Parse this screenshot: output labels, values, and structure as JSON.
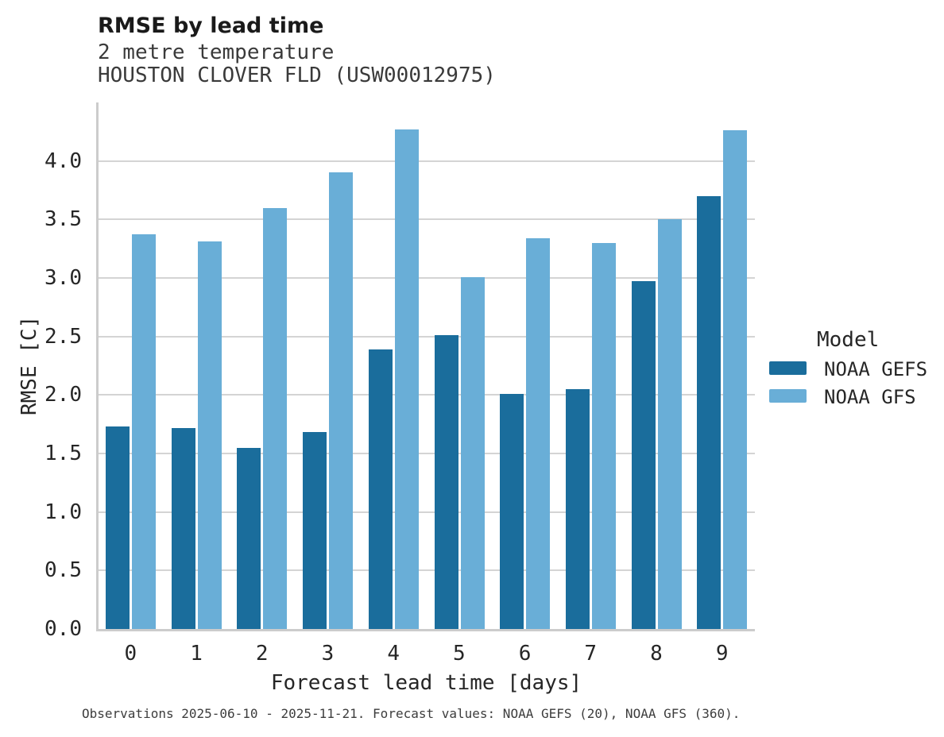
{
  "title": "RMSE by lead time",
  "subtitle_line1": "2 metre temperature",
  "subtitle_line2": "HOUSTON CLOVER FLD (USW00012975)",
  "caption": "Observations 2025-06-10 - 2025-11-21. Forecast values: NOAA GEFS (20), NOAA GFS (360).",
  "legend": {
    "title": "Model",
    "items": [
      {
        "label": "NOAA GEFS",
        "color": "#1a6d9c"
      },
      {
        "label": "NOAA GFS",
        "color": "#69aed7"
      }
    ]
  },
  "colors": {
    "gefs_dark_blue": "#1a6d9c",
    "gfs_light_blue": "#69aed7",
    "gridline_gray": "#d4d4d4",
    "spine_gray": "#cccccc"
  },
  "chart_data": {
    "type": "bar",
    "title": "RMSE by lead time",
    "subtitle": [
      "2 metre temperature",
      "HOUSTON CLOVER FLD (USW00012975)"
    ],
    "categories": [
      "0",
      "1",
      "2",
      "3",
      "4",
      "5",
      "6",
      "7",
      "8",
      "9"
    ],
    "series": [
      {
        "name": "NOAA GEFS",
        "color": "#1a6d9c",
        "values": [
          1.73,
          1.72,
          1.55,
          1.68,
          2.39,
          2.51,
          2.01,
          2.05,
          2.97,
          3.7
        ]
      },
      {
        "name": "NOAA GFS",
        "color": "#69aed7",
        "values": [
          3.37,
          3.31,
          3.6,
          3.9,
          4.27,
          3.01,
          3.34,
          3.3,
          3.5,
          4.26
        ]
      }
    ],
    "xlabel": "Forecast lead time [days]",
    "ylabel": "RMSE [C]",
    "ylim": [
      0,
      4.5
    ],
    "yticks": [
      "0.0",
      "0.5",
      "1.0",
      "1.5",
      "2.0",
      "2.5",
      "3.0",
      "3.5",
      "4.0"
    ],
    "grid": true,
    "legend_title": "Model",
    "legend_position": "right"
  }
}
